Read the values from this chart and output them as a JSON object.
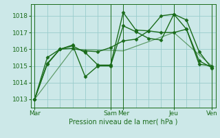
{
  "bg_color": "#cce8e8",
  "grid_color": "#99cccc",
  "line_color": "#1a6b1a",
  "marker_color": "#1a6b1a",
  "xlabel": "Pression niveau de la mer( hPa )",
  "xlabel_color": "#1a6b1a",
  "tick_color": "#1a6b1a",
  "ylim": [
    1012.5,
    1018.7
  ],
  "yticks": [
    1013,
    1014,
    1015,
    1016,
    1017,
    1018
  ],
  "xlim": [
    -0.3,
    14.3
  ],
  "major_xtick_positions": [
    0,
    6,
    7,
    11,
    14
  ],
  "major_xtick_labels": [
    "Mar",
    "Sam",
    "Mer",
    "Jeu",
    "Ven"
  ],
  "minor_xtick_positions": [
    0,
    1,
    2,
    3,
    4,
    5,
    6,
    7,
    8,
    9,
    10,
    11,
    12,
    13,
    14
  ],
  "series": [
    {
      "x": [
        0,
        1,
        2,
        3,
        4,
        5,
        6,
        7,
        8,
        9,
        10,
        11,
        12,
        13,
        14
      ],
      "y": [
        1013.0,
        1015.1,
        1016.0,
        1016.05,
        1015.9,
        1015.85,
        1016.1,
        1016.5,
        1016.6,
        1017.1,
        1017.0,
        1017.0,
        1017.2,
        1015.1,
        1015.0
      ],
      "style": "-",
      "marker": "D",
      "markersize": 2.5,
      "linewidth": 1.0
    },
    {
      "x": [
        0,
        1,
        2,
        3,
        4,
        5,
        6,
        7,
        8,
        9,
        10,
        11,
        12,
        13,
        14
      ],
      "y": [
        1013.0,
        1015.15,
        1016.0,
        1016.2,
        1015.8,
        1015.05,
        1015.05,
        1018.2,
        1017.15,
        1017.1,
        1018.0,
        1018.1,
        1017.75,
        1015.85,
        1014.85
      ],
      "style": "-",
      "marker": "D",
      "markersize": 2.5,
      "linewidth": 1.0
    },
    {
      "x": [
        0,
        1,
        2,
        3,
        4,
        5,
        6,
        7,
        8,
        9,
        10,
        11,
        12,
        13,
        14
      ],
      "y": [
        1013.0,
        1015.5,
        1016.0,
        1016.25,
        1014.35,
        1015.0,
        1015.0,
        1017.4,
        1017.05,
        1016.65,
        1016.55,
        1018.1,
        1017.2,
        1015.3,
        1014.9
      ],
      "style": "-",
      "marker": "D",
      "markersize": 2.5,
      "linewidth": 1.0
    },
    {
      "x": [
        0,
        3,
        7,
        11,
        14
      ],
      "y": [
        1013.0,
        1016.0,
        1015.9,
        1017.0,
        1015.0
      ],
      "style": "-",
      "marker": null,
      "markersize": 0,
      "linewidth": 0.9,
      "alpha": 0.6
    }
  ]
}
